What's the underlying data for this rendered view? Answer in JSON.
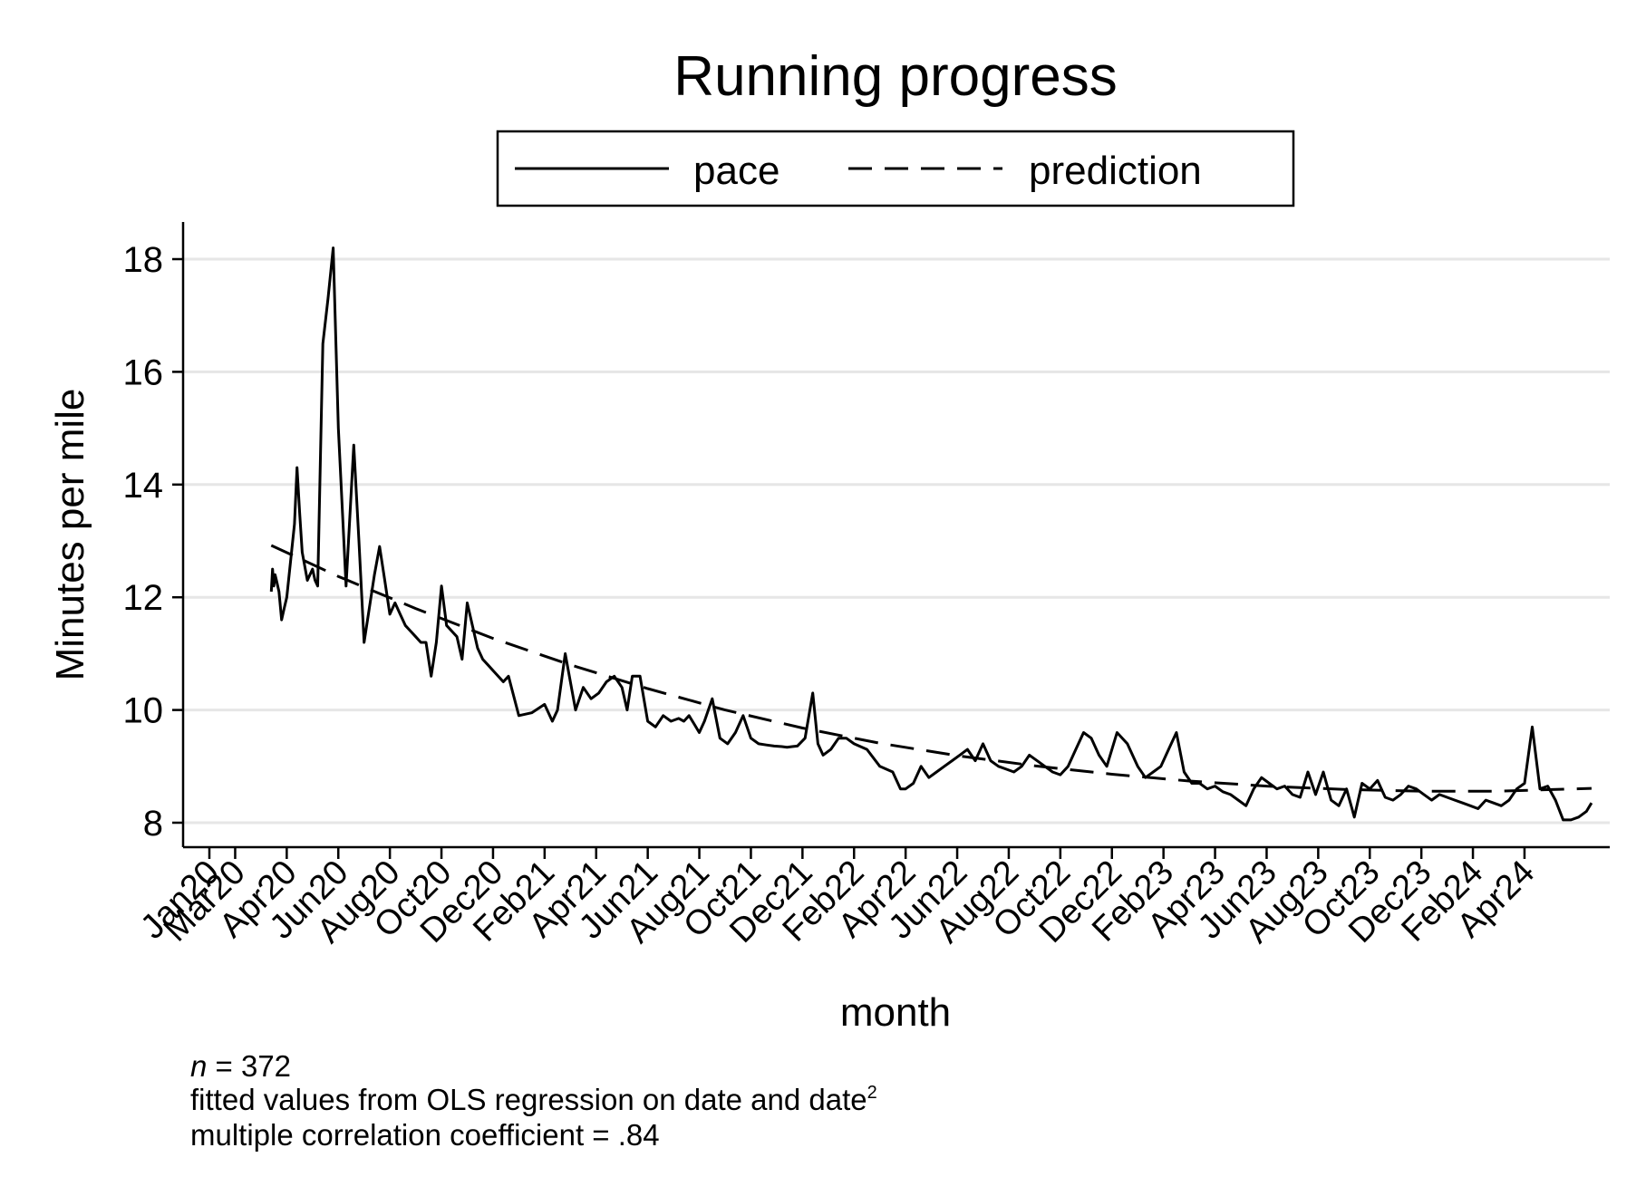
{
  "chart_data": {
    "type": "line",
    "title": "Running progress",
    "xlabel": "month",
    "ylabel": "Minutes per mile",
    "ylim": [
      7.6,
      18.7
    ],
    "yticks": [
      8,
      10,
      12,
      14,
      16,
      18
    ],
    "grid": true,
    "legend_position": "top-center",
    "x_tick_labels": [
      "Jan20",
      "Mar20",
      "Apr20",
      "Jun20",
      "Aug20",
      "Oct20",
      "Dec20",
      "Feb21",
      "Apr21",
      "Jun21",
      "Aug21",
      "Oct21",
      "Dec21",
      "Feb22",
      "Apr22",
      "Jun22",
      "Aug22",
      "Oct22",
      "Dec22",
      "Feb23",
      "Apr23",
      "Jun23",
      "Aug23",
      "Oct23",
      "Dec23",
      "Feb24",
      "Apr24"
    ],
    "x_tick_months": [
      0,
      1,
      3,
      5,
      7,
      9,
      11,
      13,
      15,
      17,
      19,
      21,
      23,
      25,
      27,
      29,
      31,
      33,
      35,
      37,
      39,
      41,
      43,
      45,
      47,
      49,
      51
    ],
    "series": [
      {
        "name": "pace",
        "style": "solid",
        "x": [
          2.4,
          2.45,
          2.5,
          2.55,
          2.6,
          2.7,
          2.8,
          2.9,
          3.0,
          3.3,
          3.4,
          3.5,
          3.6,
          3.8,
          4.0,
          4.1,
          4.2,
          4.4,
          4.6,
          4.8,
          5.0,
          5.3,
          5.6,
          5.8,
          6.0,
          6.2,
          6.4,
          6.6,
          6.8,
          7.0,
          7.2,
          7.4,
          7.6,
          7.8,
          8.0,
          8.2,
          8.4,
          8.6,
          8.8,
          9.0,
          9.2,
          9.4,
          9.6,
          9.8,
          10.0,
          10.2,
          10.4,
          10.6,
          10.8,
          11.0,
          11.2,
          11.4,
          11.6,
          12.0,
          12.5,
          13.0,
          13.3,
          13.5,
          13.8,
          14.2,
          14.5,
          14.8,
          15.1,
          15.4,
          15.7,
          16.0,
          16.2,
          16.4,
          16.7,
          17.0,
          17.3,
          17.6,
          17.9,
          18.2,
          18.4,
          18.6,
          18.8,
          19.0,
          19.2,
          19.5,
          19.8,
          20.1,
          20.4,
          20.7,
          21.0,
          21.3,
          21.6,
          21.9,
          22.2,
          22.4,
          22.6,
          22.8,
          23.1,
          23.4,
          23.6,
          23.8,
          24.1,
          24.4,
          24.7,
          25.0,
          25.5,
          26.0,
          26.5,
          26.8,
          27.0,
          27.3,
          27.6,
          27.9,
          28.2,
          28.5,
          28.8,
          29.1,
          29.4,
          29.7,
          30.0,
          30.3,
          30.6,
          30.9,
          31.2,
          31.5,
          31.8,
          32.1,
          32.4,
          32.7,
          33.0,
          33.3,
          33.6,
          33.9,
          34.2,
          34.5,
          34.8,
          35.2,
          35.6,
          36.0,
          36.3,
          36.6,
          36.9,
          37.2,
          37.5,
          37.8,
          38.1,
          38.4,
          38.7,
          39.0,
          39.3,
          39.6,
          39.9,
          40.2,
          40.5,
          40.8,
          41.1,
          41.4,
          41.7,
          42.0,
          42.3,
          42.6,
          42.9,
          43.2,
          43.5,
          43.8,
          44.1,
          44.4,
          44.7,
          45.0,
          45.3,
          45.6,
          45.9,
          46.2,
          46.5,
          46.8,
          47.1,
          47.4,
          47.7,
          48.0,
          48.3,
          48.6,
          48.9,
          49.2,
          49.5,
          49.8,
          50.1,
          50.4,
          50.7,
          51.0,
          51.3,
          51.6,
          51.9,
          52.2,
          52.5,
          52.8,
          53.1,
          53.4,
          53.6
        ],
        "y": [
          12.1,
          12.5,
          12.2,
          12.4,
          12.3,
          12.1,
          11.6,
          11.8,
          12.0,
          13.3,
          14.3,
          13.5,
          12.8,
          12.3,
          12.5,
          12.3,
          12.2,
          16.5,
          17.3,
          18.2,
          15.0,
          12.2,
          14.7,
          13.0,
          11.2,
          11.8,
          12.4,
          12.9,
          12.3,
          11.7,
          11.9,
          11.7,
          11.5,
          11.4,
          11.3,
          11.2,
          11.2,
          10.6,
          11.2,
          12.2,
          11.5,
          11.4,
          11.3,
          10.9,
          11.9,
          11.5,
          11.1,
          10.9,
          10.8,
          10.7,
          10.6,
          10.5,
          10.6,
          9.9,
          9.95,
          10.1,
          9.8,
          10.0,
          11.0,
          10.0,
          10.4,
          10.2,
          10.3,
          10.5,
          10.6,
          10.4,
          10.0,
          10.6,
          10.6,
          9.8,
          9.7,
          9.9,
          9.8,
          9.85,
          9.8,
          9.9,
          9.75,
          9.6,
          9.8,
          10.2,
          9.5,
          9.4,
          9.6,
          9.9,
          9.5,
          9.4,
          9.38,
          9.36,
          9.35,
          9.34,
          9.35,
          9.36,
          9.5,
          10.3,
          9.4,
          9.2,
          9.3,
          9.5,
          9.5,
          9.4,
          9.3,
          9.0,
          8.9,
          8.6,
          8.6,
          8.7,
          9.0,
          8.8,
          8.9,
          9.0,
          9.1,
          9.2,
          9.3,
          9.1,
          9.4,
          9.1,
          9.0,
          8.95,
          8.9,
          9.0,
          9.2,
          9.1,
          9.0,
          8.9,
          8.85,
          9.0,
          9.3,
          9.6,
          9.5,
          9.2,
          9.0,
          9.6,
          9.4,
          9.0,
          8.8,
          8.9,
          9.0,
          9.3,
          9.6,
          8.9,
          8.7,
          8.7,
          8.6,
          8.65,
          8.55,
          8.5,
          8.4,
          8.3,
          8.6,
          8.8,
          8.7,
          8.6,
          8.65,
          8.5,
          8.45,
          8.9,
          8.5,
          8.9,
          8.4,
          8.3,
          8.6,
          8.1,
          8.7,
          8.6,
          8.75,
          8.45,
          8.4,
          8.5,
          8.65,
          8.6,
          8.5,
          8.4,
          8.5,
          8.45,
          8.4,
          8.35,
          8.3,
          8.25,
          8.4,
          8.35,
          8.3,
          8.4,
          8.6,
          8.7,
          9.7,
          8.6,
          8.65,
          8.4,
          8.05,
          8.05,
          8.1,
          8.2,
          8.35
        ]
      },
      {
        "name": "prediction",
        "style": "dashed",
        "x": [
          2.4,
          5,
          8,
          11,
          14,
          17,
          20,
          23,
          26,
          29,
          32,
          35,
          38,
          41,
          44,
          47,
          50,
          53.6
        ],
        "y": [
          12.92,
          12.37,
          11.8,
          11.27,
          10.8,
          10.38,
          10.0,
          9.68,
          9.41,
          9.19,
          9.01,
          8.86,
          8.74,
          8.65,
          8.59,
          8.56,
          8.56,
          8.61
        ]
      }
    ]
  },
  "notes": {
    "n_label": "n",
    "n_rest": " = 372",
    "line2": "fitted values from OLS regression on date and date",
    "line2_sup": "2",
    "line3": "multiple correlation coefficient = .84"
  }
}
